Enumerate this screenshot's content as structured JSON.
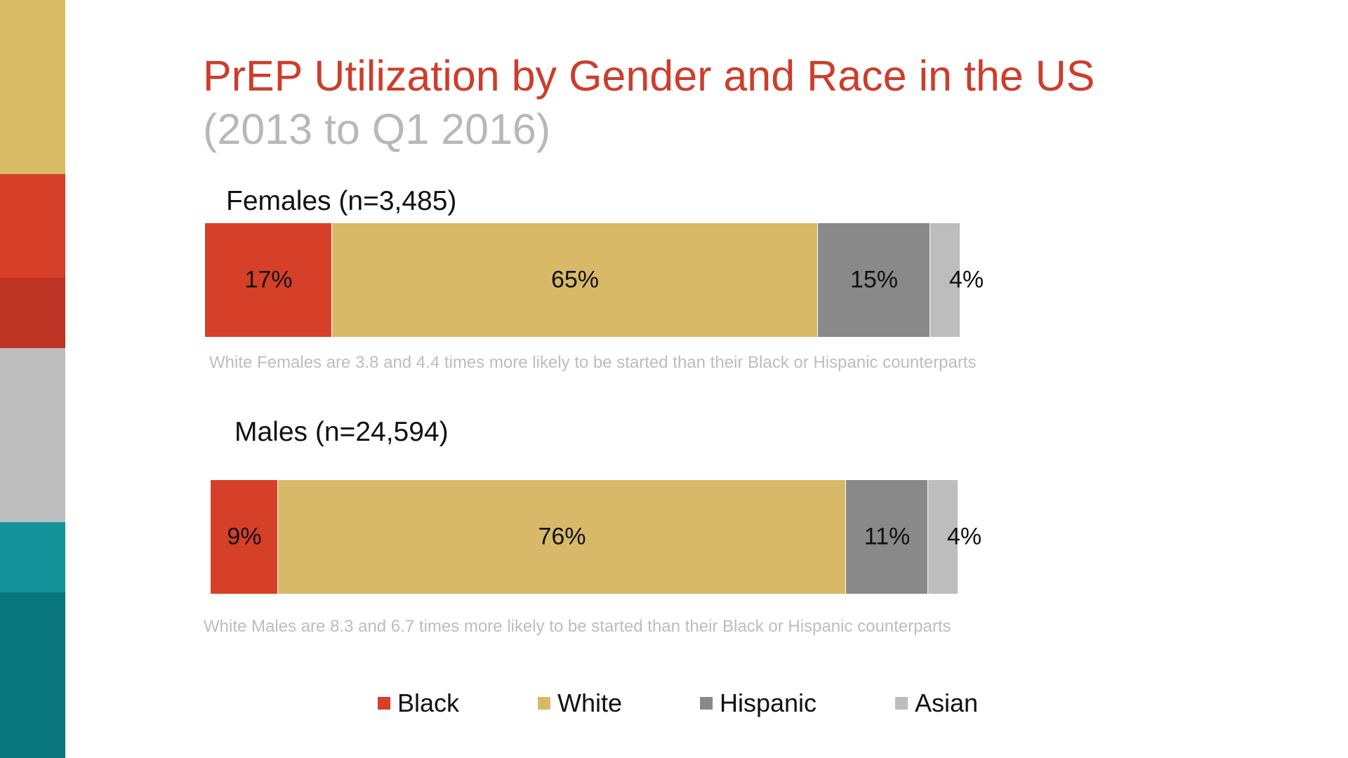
{
  "title": "PrEP Utilization by Gender and Race in the US",
  "subtitle": "(2013 to Q1 2016)",
  "colors": {
    "black": "#d63f28",
    "white": "#d8b968",
    "hispanic": "#898989",
    "asian": "#bdbdbd",
    "title": "#cd3d2c",
    "sidebar": [
      "#d9bb66",
      "#d63f28",
      "#be3526",
      "#bdbdbd",
      "#13929a",
      "#08767c"
    ]
  },
  "chart_data": [
    {
      "type": "bar",
      "stacked": true,
      "orientation": "horizontal",
      "title": "Females (n=3,485)",
      "categories": [
        "Females"
      ],
      "series": [
        {
          "name": "Black",
          "values": [
            17
          ],
          "label": "17%"
        },
        {
          "name": "White",
          "values": [
            65
          ],
          "label": "65%"
        },
        {
          "name": "Hispanic",
          "values": [
            15
          ],
          "label": "15%"
        },
        {
          "name": "Asian",
          "values": [
            4
          ],
          "label": "4%"
        }
      ],
      "annotation": "White Females are 3.8 and 4.4 times more likely to be started than their Black or Hispanic counterparts"
    },
    {
      "type": "bar",
      "stacked": true,
      "orientation": "horizontal",
      "title": "Males (n=24,594)",
      "categories": [
        "Males"
      ],
      "series": [
        {
          "name": "Black",
          "values": [
            9
          ],
          "label": "9%"
        },
        {
          "name": "White",
          "values": [
            76
          ],
          "label": "76%"
        },
        {
          "name": "Hispanic",
          "values": [
            11
          ],
          "label": "11%"
        },
        {
          "name": "Asian",
          "values": [
            4
          ],
          "label": "4%"
        }
      ],
      "annotation": "White Males are 8.3 and 6.7 times more likely to be started than their Black or Hispanic counterparts"
    }
  ],
  "legend": [
    {
      "label": "Black",
      "color_key": "black"
    },
    {
      "label": "White",
      "color_key": "white"
    },
    {
      "label": "Hispanic",
      "color_key": "hispanic"
    },
    {
      "label": "Asian",
      "color_key": "asian"
    }
  ]
}
